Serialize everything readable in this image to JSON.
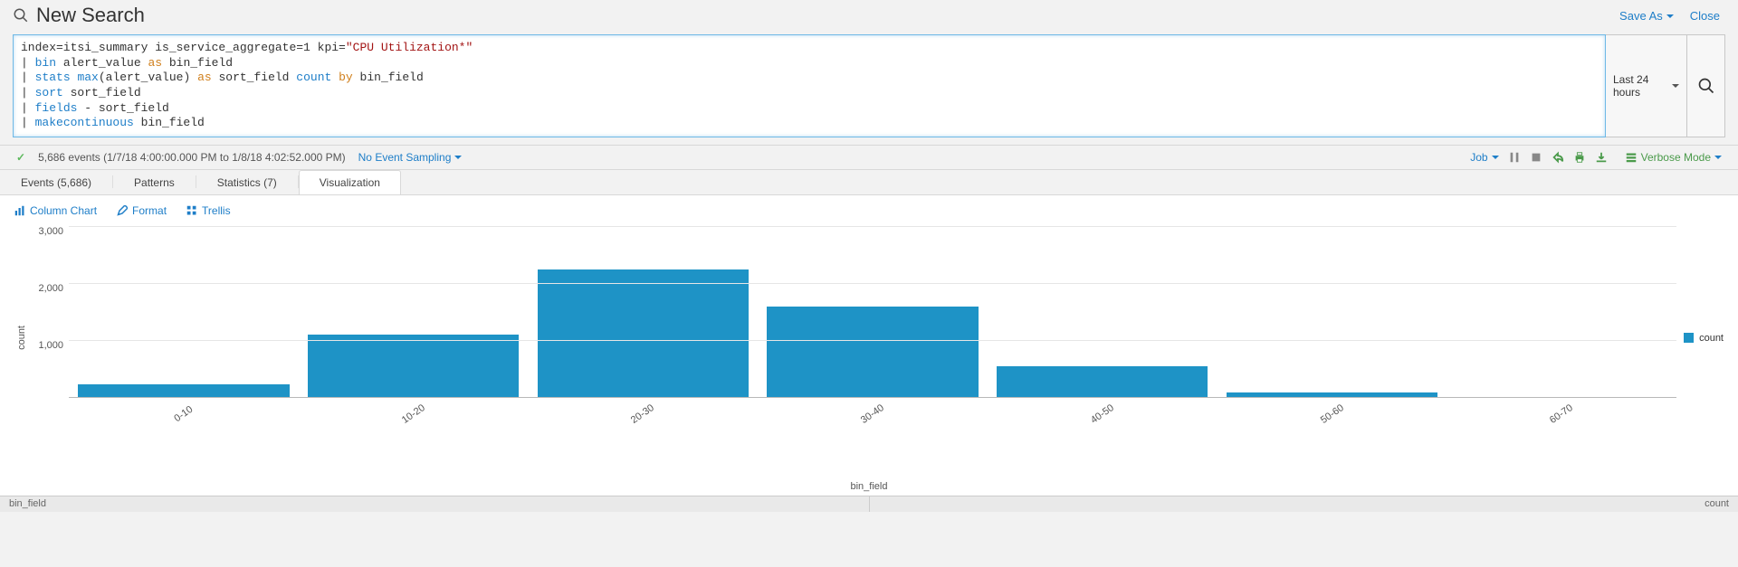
{
  "header": {
    "title": "New Search",
    "save_as": "Save As",
    "close": "Close"
  },
  "search": {
    "spl_tokens": [
      [
        {
          "t": "plain",
          "v": "index=itsi_summary is_service_aggregate=1 kpi="
        },
        {
          "t": "str",
          "v": "\"CPU Utilization*\""
        }
      ],
      [
        {
          "t": "plain",
          "v": "| "
        },
        {
          "t": "cmd",
          "v": "bin"
        },
        {
          "t": "plain",
          "v": " alert_value "
        },
        {
          "t": "kw",
          "v": "as"
        },
        {
          "t": "plain",
          "v": " bin_field"
        }
      ],
      [
        {
          "t": "plain",
          "v": "| "
        },
        {
          "t": "cmd",
          "v": "stats"
        },
        {
          "t": "plain",
          "v": " "
        },
        {
          "t": "cmd",
          "v": "max"
        },
        {
          "t": "plain",
          "v": "(alert_value) "
        },
        {
          "t": "kw",
          "v": "as"
        },
        {
          "t": "plain",
          "v": " sort_field "
        },
        {
          "t": "cmd",
          "v": "count"
        },
        {
          "t": "plain",
          "v": " "
        },
        {
          "t": "kw",
          "v": "by"
        },
        {
          "t": "plain",
          "v": " bin_field"
        }
      ],
      [
        {
          "t": "plain",
          "v": "| "
        },
        {
          "t": "cmd",
          "v": "sort"
        },
        {
          "t": "plain",
          "v": " sort_field"
        }
      ],
      [
        {
          "t": "plain",
          "v": "| "
        },
        {
          "t": "cmd",
          "v": "fields"
        },
        {
          "t": "plain",
          "v": " - sort_field"
        }
      ],
      [
        {
          "t": "plain",
          "v": "| "
        },
        {
          "t": "cmd",
          "v": "makecontinuous"
        },
        {
          "t": "plain",
          "v": " bin_field"
        }
      ]
    ],
    "time_picker": "Last 24 hours"
  },
  "status": {
    "events_text": "5,686 events (1/7/18 4:00:00.000 PM to 1/8/18 4:02:52.000 PM)",
    "sampling": "No Event Sampling",
    "job_label": "Job",
    "mode_label": "Verbose Mode"
  },
  "tabs": {
    "events": "Events (5,686)",
    "patterns": "Patterns",
    "statistics": "Statistics (7)",
    "visualization": "Visualization"
  },
  "viz_toolbar": {
    "chart_type": "Column Chart",
    "format": "Format",
    "trellis": "Trellis"
  },
  "chart": {
    "type": "bar",
    "categories": [
      "0-10",
      "10-20",
      "20-30",
      "30-40",
      "40-50",
      "50-60",
      "60-70"
    ],
    "values": [
      210,
      1080,
      2220,
      1570,
      540,
      70,
      0
    ],
    "bar_color": "#1e93c6",
    "ylabel": "count",
    "xlabel": "bin_field",
    "ylim": [
      0,
      3000
    ],
    "ytick_step": 1000,
    "ytick_labels": [
      "3,000",
      "2,000",
      "1,000",
      ""
    ],
    "grid_color": "#e6e6e6",
    "axis_color": "#b8b8b8",
    "background": "#ffffff",
    "label_fontsize": 11,
    "bar_width_pct": 92,
    "legend_label": "count"
  },
  "footer": {
    "left": "bin_field",
    "right": "count"
  }
}
